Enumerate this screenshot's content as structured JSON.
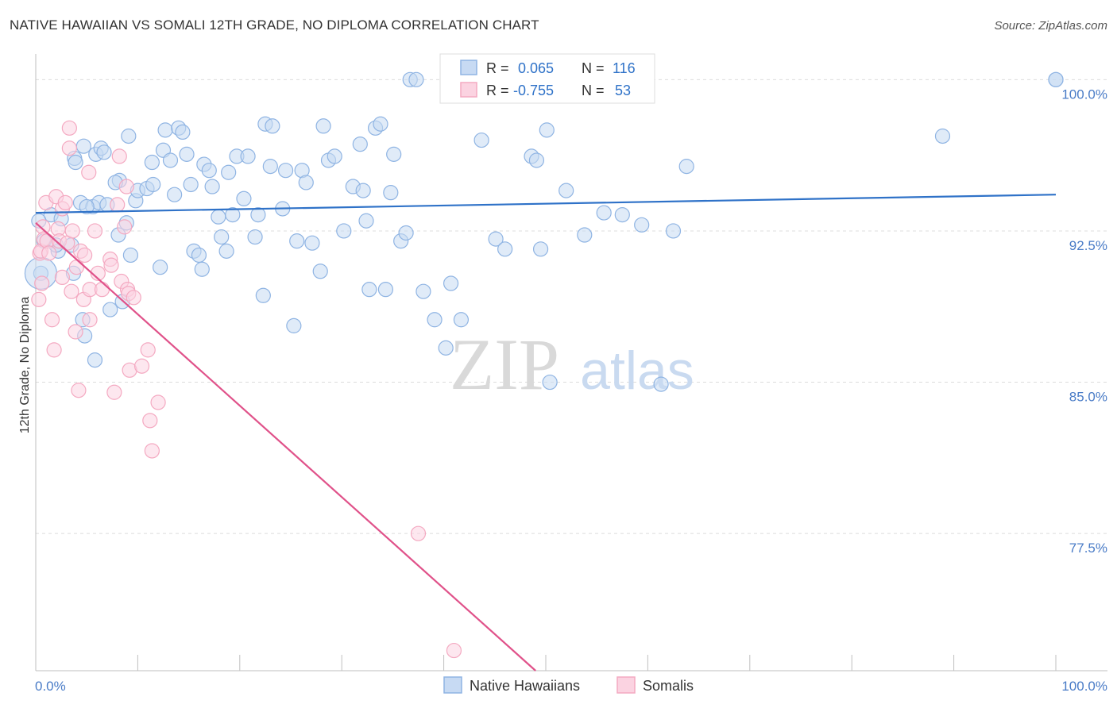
{
  "title": "NATIVE HAWAIIAN VS SOMALI 12TH GRADE, NO DIPLOMA CORRELATION CHART",
  "source": "Source: ZipAtlas.com",
  "watermark": {
    "zip": "ZIP",
    "atlas": "atlas"
  },
  "chart_data": {
    "type": "scatter",
    "title": "NATIVE HAWAIIAN VS SOMALI 12TH GRADE, NO DIPLOMA CORRELATION CHART",
    "xlabel": "",
    "ylabel": "12th Grade, No Diploma",
    "xlim": [
      0,
      100
    ],
    "ylim": [
      70.7,
      100.8
    ],
    "x_tick_labels": {
      "left": "0.0%",
      "right": "100.0%"
    },
    "y_ticks": [
      100.0,
      92.5,
      85.0,
      77.5
    ],
    "y_tick_labels": [
      "100.0%",
      "92.5%",
      "85.0%",
      "77.5%"
    ],
    "grid": true,
    "legend": [
      {
        "label": "R =",
        "r": "0.065",
        "n_label": "N =",
        "n": "116"
      },
      {
        "label": "R =",
        "r": "-0.755",
        "n_label": "N =",
        "n": "53"
      }
    ],
    "series": [
      {
        "name": "Native Hawaiians",
        "color": "#8fb4e3",
        "line_color": "#2f72c8",
        "trend": {
          "x": [
            0,
            100
          ],
          "y": [
            93.4,
            94.3
          ]
        },
        "points": [
          [
            0.5,
            90.4
          ],
          [
            0.8,
            92.0
          ],
          [
            1.5,
            93.3
          ],
          [
            2.2,
            91.5
          ],
          [
            2.5,
            93.1
          ],
          [
            3.5,
            91.8
          ],
          [
            3.7,
            90.4
          ],
          [
            3.8,
            96.1
          ],
          [
            3.9,
            95.9
          ],
          [
            4.4,
            93.9
          ],
          [
            4.6,
            88.1
          ],
          [
            4.7,
            96.7
          ],
          [
            4.8,
            87.3
          ],
          [
            5.6,
            93.7
          ],
          [
            5.8,
            86.1
          ],
          [
            5.9,
            96.3
          ],
          [
            6.2,
            93.9
          ],
          [
            6.4,
            96.6
          ],
          [
            6.7,
            96.4
          ],
          [
            7.0,
            93.8
          ],
          [
            7.3,
            88.6
          ],
          [
            8.1,
            92.3
          ],
          [
            8.2,
            95.0
          ],
          [
            8.5,
            89.0
          ],
          [
            8.9,
            92.9
          ],
          [
            9.1,
            97.2
          ],
          [
            9.3,
            91.3
          ],
          [
            9.8,
            94.0
          ],
          [
            10.0,
            94.5
          ],
          [
            10.9,
            94.6
          ],
          [
            11.4,
            95.9
          ],
          [
            11.5,
            94.8
          ],
          [
            12.2,
            90.7
          ],
          [
            12.5,
            96.5
          ],
          [
            12.7,
            97.5
          ],
          [
            13.2,
            96.0
          ],
          [
            13.6,
            94.3
          ],
          [
            14.0,
            97.6
          ],
          [
            14.4,
            97.4
          ],
          [
            14.8,
            96.3
          ],
          [
            15.2,
            94.8
          ],
          [
            15.5,
            91.5
          ],
          [
            16.0,
            91.3
          ],
          [
            16.3,
            90.6
          ],
          [
            16.5,
            95.8
          ],
          [
            17.0,
            95.5
          ],
          [
            17.3,
            94.7
          ],
          [
            17.9,
            93.2
          ],
          [
            18.2,
            92.2
          ],
          [
            18.7,
            91.5
          ],
          [
            18.9,
            95.4
          ],
          [
            19.3,
            93.3
          ],
          [
            19.7,
            96.2
          ],
          [
            20.4,
            94.1
          ],
          [
            20.8,
            96.2
          ],
          [
            21.5,
            92.2
          ],
          [
            21.8,
            93.3
          ],
          [
            22.3,
            89.3
          ],
          [
            22.5,
            97.8
          ],
          [
            23.0,
            95.7
          ],
          [
            23.2,
            97.7
          ],
          [
            24.2,
            93.6
          ],
          [
            24.5,
            95.5
          ],
          [
            25.3,
            87.8
          ],
          [
            25.6,
            92.0
          ],
          [
            26.1,
            95.5
          ],
          [
            26.5,
            94.9
          ],
          [
            27.1,
            91.9
          ],
          [
            27.9,
            90.5
          ],
          [
            28.2,
            97.7
          ],
          [
            28.7,
            96.0
          ],
          [
            29.3,
            96.2
          ],
          [
            30.2,
            92.5
          ],
          [
            31.1,
            94.7
          ],
          [
            31.8,
            96.8
          ],
          [
            32.1,
            94.5
          ],
          [
            32.4,
            93.0
          ],
          [
            32.7,
            89.6
          ],
          [
            33.3,
            97.6
          ],
          [
            33.8,
            97.8
          ],
          [
            34.3,
            89.6
          ],
          [
            34.8,
            94.4
          ],
          [
            35.1,
            96.3
          ],
          [
            35.8,
            92.0
          ],
          [
            36.3,
            92.4
          ],
          [
            36.7,
            100.0
          ],
          [
            37.3,
            100.0
          ],
          [
            38.0,
            89.5
          ],
          [
            39.1,
            88.1
          ],
          [
            40.2,
            86.7
          ],
          [
            40.7,
            89.9
          ],
          [
            41.7,
            88.1
          ],
          [
            43.7,
            97.0
          ],
          [
            45.1,
            92.1
          ],
          [
            46.0,
            91.6
          ],
          [
            46.9,
            100.0
          ],
          [
            47.5,
            100.0
          ],
          [
            48.6,
            96.2
          ],
          [
            49.1,
            96.0
          ],
          [
            49.5,
            91.6
          ],
          [
            50.1,
            97.5
          ],
          [
            50.4,
            85.0
          ],
          [
            52.0,
            94.5
          ],
          [
            53.8,
            92.3
          ],
          [
            55.7,
            93.4
          ],
          [
            57.5,
            93.3
          ],
          [
            59.4,
            92.8
          ],
          [
            61.3,
            84.9
          ],
          [
            62.5,
            92.5
          ],
          [
            63.8,
            95.7
          ],
          [
            88.9,
            97.2
          ],
          [
            100.0,
            100.0
          ],
          [
            100.0,
            100.0
          ],
          [
            0.3,
            93.0
          ],
          [
            2.0,
            91.8
          ],
          [
            5.0,
            93.7
          ],
          [
            7.8,
            94.9
          ]
        ]
      },
      {
        "name": "Somalis",
        "color": "#f4a9c1",
        "line_color": "#e0528a",
        "trend": {
          "x": [
            0,
            49.0
          ],
          "y": [
            92.9,
            70.7
          ]
        },
        "points": [
          [
            0.3,
            89.1
          ],
          [
            0.4,
            91.4
          ],
          [
            0.5,
            91.5
          ],
          [
            0.7,
            92.7
          ],
          [
            0.8,
            92.1
          ],
          [
            1.0,
            93.9
          ],
          [
            1.1,
            92.0
          ],
          [
            1.3,
            91.4
          ],
          [
            1.6,
            88.1
          ],
          [
            1.8,
            86.6
          ],
          [
            2.0,
            94.2
          ],
          [
            2.2,
            92.6
          ],
          [
            2.3,
            92.0
          ],
          [
            2.6,
            93.6
          ],
          [
            2.6,
            90.2
          ],
          [
            2.9,
            93.9
          ],
          [
            3.1,
            91.9
          ],
          [
            3.3,
            97.6
          ],
          [
            3.3,
            96.6
          ],
          [
            3.5,
            89.5
          ],
          [
            3.6,
            92.5
          ],
          [
            3.9,
            87.5
          ],
          [
            4.0,
            90.7
          ],
          [
            4.2,
            84.6
          ],
          [
            4.4,
            91.5
          ],
          [
            4.7,
            89.1
          ],
          [
            4.8,
            91.3
          ],
          [
            5.2,
            95.4
          ],
          [
            5.3,
            89.6
          ],
          [
            5.3,
            88.1
          ],
          [
            5.8,
            92.5
          ],
          [
            6.1,
            90.4
          ],
          [
            6.5,
            89.6
          ],
          [
            7.3,
            91.1
          ],
          [
            7.4,
            90.8
          ],
          [
            7.7,
            84.5
          ],
          [
            8.0,
            93.8
          ],
          [
            8.2,
            96.2
          ],
          [
            8.4,
            90.0
          ],
          [
            8.7,
            92.7
          ],
          [
            8.9,
            94.7
          ],
          [
            9.0,
            89.6
          ],
          [
            9.1,
            89.4
          ],
          [
            9.2,
            85.6
          ],
          [
            9.6,
            89.2
          ],
          [
            10.4,
            85.8
          ],
          [
            11.0,
            86.6
          ],
          [
            11.2,
            83.1
          ],
          [
            11.4,
            81.6
          ],
          [
            12.0,
            84.0
          ],
          [
            37.5,
            77.5
          ],
          [
            41.0,
            71.7
          ],
          [
            0.6,
            89.9
          ]
        ]
      }
    ]
  },
  "legend_bottom": [
    "Native Hawaiians",
    "Somalis"
  ]
}
